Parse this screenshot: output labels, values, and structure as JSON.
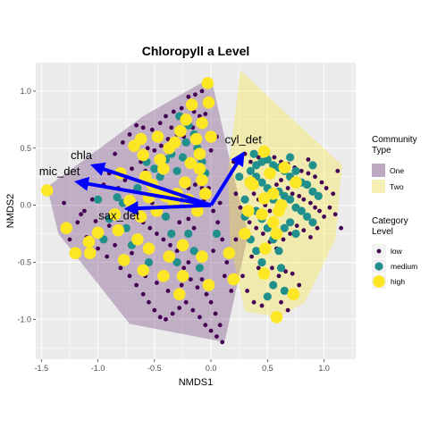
{
  "chart_data": {
    "type": "scatter",
    "title": "Chloropyll a Level",
    "xlabel": "NMDS1",
    "ylabel": "NMDS2",
    "xlim": [
      -1.55,
      1.28
    ],
    "ylim": [
      -1.35,
      1.25
    ],
    "x_ticks": [
      "-1.5",
      "-1.0",
      "-0.5",
      "0.0",
      "0.5",
      "1.0"
    ],
    "x_tick_values": [
      -1.5,
      -1.0,
      -0.5,
      0.0,
      0.5,
      1.0
    ],
    "y_ticks": [
      "-1.0",
      "-0.5",
      "0.0",
      "0.5",
      "1.0"
    ],
    "y_tick_values": [
      -1.0,
      -0.5,
      0.0,
      0.5,
      1.0
    ],
    "grid": true,
    "legend_placement": "right",
    "hulls": {
      "legend_title": "Community Type",
      "groups": [
        {
          "name": "One",
          "color": "#440154",
          "polygon": [
            [
              -1.45,
              0.16
            ],
            [
              -0.6,
              0.78
            ],
            [
              0.0,
              1.12
            ],
            [
              0.17,
              0.38
            ],
            [
              0.33,
              -0.25
            ],
            [
              0.12,
              -1.2
            ],
            [
              -0.72,
              -1.04
            ],
            [
              -1.35,
              -0.25
            ]
          ]
        },
        {
          "name": "Two",
          "color": "#fde725",
          "polygon": [
            [
              0.26,
              1.18
            ],
            [
              1.16,
              0.35
            ],
            [
              1.1,
              -0.3
            ],
            [
              0.83,
              -0.85
            ],
            [
              0.6,
              -0.98
            ],
            [
              0.3,
              -0.93
            ],
            [
              0.17,
              -0.35
            ],
            [
              0.15,
              0.3
            ]
          ]
        }
      ]
    },
    "points": {
      "legend_title": "Category Level",
      "categories": [
        {
          "name": "low",
          "color": "#440154"
        },
        {
          "name": "medium",
          "color": "#21908c"
        },
        {
          "name": "high",
          "color": "#fde725"
        }
      ],
      "high": [
        [
          -1.45,
          0.13
        ],
        [
          -1.28,
          -0.2
        ],
        [
          -1.08,
          -0.32
        ],
        [
          -1.0,
          -0.24
        ],
        [
          -1.07,
          -0.42
        ],
        [
          -1.2,
          -0.42
        ],
        [
          -0.82,
          -0.22
        ],
        [
          -0.77,
          -0.48
        ],
        [
          -0.6,
          -0.57
        ],
        [
          -0.85,
          -0.08
        ],
        [
          -0.68,
          0.52
        ],
        [
          -0.62,
          0.58
        ],
        [
          -0.58,
          0.25
        ],
        [
          -0.52,
          0.18
        ],
        [
          -0.55,
          0.07
        ],
        [
          -0.47,
          0.6
        ],
        [
          -0.47,
          0.12
        ],
        [
          -0.4,
          0.08
        ],
        [
          -0.45,
          0.4
        ],
        [
          -0.42,
          0.32
        ],
        [
          -0.37,
          0.5
        ],
        [
          -0.32,
          0.55
        ],
        [
          -0.27,
          0.65
        ],
        [
          -0.22,
          0.75
        ],
        [
          -0.17,
          0.88
        ],
        [
          -0.13,
          0.58
        ],
        [
          -0.1,
          0.32
        ],
        [
          -0.08,
          0.22
        ],
        [
          -0.05,
          0.1
        ],
        [
          -0.08,
          0.72
        ],
        [
          -0.02,
          0.9
        ],
        [
          -0.03,
          1.07
        ],
        [
          -0.18,
          0.37
        ],
        [
          -0.3,
          0.1
        ],
        [
          -0.23,
          0.2
        ],
        [
          -0.6,
          0.44
        ],
        [
          -0.55,
          -0.38
        ],
        [
          -0.62,
          -0.1
        ],
        [
          -0.48,
          -0.05
        ],
        [
          -0.37,
          -0.45
        ],
        [
          -0.42,
          -0.62
        ],
        [
          -0.25,
          -0.35
        ],
        [
          -0.25,
          -0.62
        ],
        [
          -0.28,
          -0.78
        ],
        [
          -0.08,
          -0.45
        ],
        [
          -0.02,
          -0.7
        ],
        [
          0.16,
          -0.42
        ],
        [
          0.2,
          -0.65
        ],
        [
          -0.65,
          -0.3
        ],
        [
          -0.72,
          0.04
        ],
        [
          -0.33,
          0.02
        ],
        [
          -0.2,
          0.05
        ],
        [
          -0.12,
          -0.05
        ],
        [
          -0.8,
          0.28
        ],
        [
          0.0,
          0.6
        ],
        [
          -0.1,
          0.45
        ],
        [
          0.52,
          0.28
        ],
        [
          0.47,
          0.06
        ],
        [
          0.55,
          0.1
        ],
        [
          0.6,
          -0.05
        ],
        [
          0.55,
          -0.15
        ],
        [
          0.58,
          -0.25
        ],
        [
          0.48,
          -0.38
        ],
        [
          0.62,
          0.0
        ],
        [
          0.37,
          0.18
        ],
        [
          0.45,
          -0.08
        ],
        [
          0.47,
          0.47
        ],
        [
          0.33,
          -0.05
        ],
        [
          0.3,
          -0.25
        ],
        [
          0.73,
          -0.78
        ],
        [
          0.58,
          -0.98
        ],
        [
          0.47,
          -0.6
        ],
        [
          0.75,
          0.2
        ],
        [
          0.65,
          0.33
        ],
        [
          0.35,
          0.2
        ]
      ],
      "medium": [
        [
          -0.9,
          -0.12
        ],
        [
          -0.95,
          -0.3
        ],
        [
          -1.0,
          0.05
        ],
        [
          -0.83,
          0.07
        ],
        [
          -0.78,
          0.02
        ],
        [
          -0.75,
          -0.2
        ],
        [
          -0.7,
          -0.35
        ],
        [
          -0.57,
          0.38
        ],
        [
          -0.5,
          0.32
        ],
        [
          -0.45,
          0.25
        ],
        [
          -0.4,
          0.4
        ],
        [
          -0.35,
          0.45
        ],
        [
          -0.3,
          0.3
        ],
        [
          -0.25,
          0.42
        ],
        [
          -0.22,
          0.55
        ],
        [
          -0.15,
          0.62
        ],
        [
          -0.12,
          0.5
        ],
        [
          -0.08,
          0.38
        ],
        [
          -0.05,
          0.28
        ],
        [
          -0.4,
          -0.1
        ],
        [
          -0.35,
          -0.25
        ],
        [
          -0.3,
          -0.5
        ],
        [
          -0.2,
          -0.25
        ],
        [
          -0.15,
          -0.4
        ],
        [
          -0.1,
          -0.55
        ],
        [
          0.05,
          -0.25
        ],
        [
          -0.65,
          0.15
        ],
        [
          -0.55,
          -0.5
        ],
        [
          -0.28,
          0.78
        ],
        [
          -0.2,
          0.7
        ],
        [
          0.35,
          0.3
        ],
        [
          0.4,
          0.35
        ],
        [
          0.45,
          0.38
        ],
        [
          0.5,
          0.4
        ],
        [
          0.55,
          0.35
        ],
        [
          0.6,
          0.33
        ],
        [
          0.65,
          0.3
        ],
        [
          0.7,
          0.25
        ],
        [
          0.75,
          0.3
        ],
        [
          0.8,
          0.2
        ],
        [
          0.85,
          0.18
        ],
        [
          0.9,
          0.12
        ],
        [
          0.95,
          0.08
        ],
        [
          0.4,
          0.25
        ],
        [
          0.45,
          0.2
        ],
        [
          0.5,
          0.15
        ],
        [
          0.55,
          0.05
        ],
        [
          0.6,
          0.12
        ],
        [
          0.65,
          0.08
        ],
        [
          0.7,
          0.05
        ],
        [
          0.75,
          -0.02
        ],
        [
          0.8,
          -0.05
        ],
        [
          0.85,
          -0.1
        ],
        [
          0.9,
          -0.15
        ],
        [
          0.4,
          -0.05
        ],
        [
          0.45,
          -0.12
        ],
        [
          0.5,
          -0.2
        ],
        [
          0.55,
          -0.3
        ],
        [
          0.6,
          -0.4
        ],
        [
          0.65,
          -0.2
        ],
        [
          0.7,
          -0.15
        ],
        [
          0.75,
          -0.25
        ],
        [
          0.3,
          -0.1
        ],
        [
          0.35,
          -0.3
        ],
        [
          0.4,
          -0.4
        ],
        [
          0.45,
          -0.5
        ],
        [
          0.55,
          -0.7
        ],
        [
          0.5,
          -0.8
        ],
        [
          0.65,
          -0.75
        ],
        [
          0.3,
          0.05
        ],
        [
          0.38,
          0.45
        ],
        [
          0.7,
          0.42
        ],
        [
          0.9,
          0.35
        ],
        [
          0.62,
          -0.55
        ],
        [
          0.25,
          0.25
        ]
      ],
      "low": [
        [
          -0.85,
          0.45
        ],
        [
          -0.78,
          0.55
        ],
        [
          -0.72,
          0.62
        ],
        [
          -0.66,
          0.7
        ],
        [
          -0.6,
          0.68
        ],
        [
          -0.52,
          0.66
        ],
        [
          -0.45,
          0.72
        ],
        [
          -0.4,
          0.78
        ],
        [
          -0.33,
          0.82
        ],
        [
          -0.26,
          0.85
        ],
        [
          -0.2,
          0.95
        ],
        [
          -0.14,
          0.97
        ],
        [
          -0.08,
          1.0
        ],
        [
          -0.05,
          0.8
        ],
        [
          -0.1,
          0.78
        ],
        [
          -0.16,
          0.68
        ],
        [
          -0.24,
          0.6
        ],
        [
          -0.3,
          0.62
        ],
        [
          -0.38,
          0.58
        ],
        [
          -0.44,
          0.52
        ],
        [
          -0.5,
          0.48
        ],
        [
          -0.56,
          0.5
        ],
        [
          -0.62,
          0.38
        ],
        [
          -0.7,
          0.32
        ],
        [
          -0.76,
          0.22
        ],
        [
          -0.82,
          0.15
        ],
        [
          -0.9,
          0.28
        ],
        [
          -0.95,
          0.18
        ],
        [
          -1.05,
          0.05
        ],
        [
          -1.12,
          -0.05
        ],
        [
          -1.18,
          -0.15
        ],
        [
          -1.25,
          -0.3
        ],
        [
          -1.1,
          -0.28
        ],
        [
          -1.0,
          -0.38
        ],
        [
          -0.92,
          -0.45
        ],
        [
          -0.85,
          -0.35
        ],
        [
          -0.8,
          -0.55
        ],
        [
          -0.72,
          -0.62
        ],
        [
          -0.66,
          -0.7
        ],
        [
          -0.6,
          -0.78
        ],
        [
          -0.55,
          -0.85
        ],
        [
          -0.5,
          -0.92
        ],
        [
          -0.45,
          -0.98
        ],
        [
          -0.4,
          -1.0
        ],
        [
          -0.34,
          -0.95
        ],
        [
          -0.28,
          -0.9
        ],
        [
          -0.22,
          -0.85
        ],
        [
          -0.16,
          -0.92
        ],
        [
          -0.1,
          -0.98
        ],
        [
          -0.05,
          -1.05
        ],
        [
          0.0,
          -1.1
        ],
        [
          0.05,
          -1.15
        ],
        [
          0.1,
          -1.2
        ],
        [
          0.08,
          -1.05
        ],
        [
          0.04,
          -0.95
        ],
        [
          0.0,
          -0.85
        ],
        [
          -0.04,
          -0.78
        ],
        [
          -0.08,
          -0.65
        ],
        [
          -0.12,
          -0.72
        ],
        [
          -0.18,
          -0.65
        ],
        [
          -0.24,
          -0.55
        ],
        [
          -0.3,
          -0.4
        ],
        [
          -0.36,
          -0.35
        ],
        [
          -0.42,
          -0.3
        ],
        [
          -0.48,
          -0.25
        ],
        [
          -0.54,
          -0.2
        ],
        [
          -0.6,
          -0.15
        ],
        [
          -0.66,
          -0.05
        ],
        [
          -0.52,
          0.02
        ],
        [
          -0.46,
          -0.02
        ],
        [
          -0.38,
          0.05
        ],
        [
          -0.32,
          0.12
        ],
        [
          -0.26,
          0.08
        ],
        [
          -0.2,
          0.15
        ],
        [
          -0.14,
          0.18
        ],
        [
          -0.06,
          0.05
        ],
        [
          0.02,
          -0.05
        ],
        [
          0.06,
          -0.15
        ],
        [
          0.1,
          -0.3
        ],
        [
          0.14,
          -0.5
        ],
        [
          0.12,
          -0.62
        ],
        [
          0.18,
          -0.75
        ],
        [
          0.22,
          -0.3
        ],
        [
          0.08,
          0.02
        ],
        [
          -0.02,
          0.15
        ],
        [
          -0.2,
          -0.12
        ],
        [
          -0.15,
          -0.2
        ],
        [
          -0.28,
          -0.15
        ],
        [
          -0.7,
          -0.42
        ],
        [
          -0.58,
          -0.62
        ],
        [
          -0.48,
          -0.68
        ],
        [
          -0.38,
          -0.75
        ],
        [
          -0.26,
          -0.7
        ],
        [
          -0.2,
          -0.5
        ],
        [
          0.02,
          -0.4
        ],
        [
          -0.9,
          -0.18
        ],
        [
          -1.02,
          -0.14
        ],
        [
          -1.15,
          -0.08
        ],
        [
          -1.3,
          0.02
        ],
        [
          -0.68,
          0.12
        ],
        [
          -0.58,
          0.3
        ],
        [
          -0.35,
          0.68
        ],
        [
          -0.15,
          0.82
        ],
        [
          0.05,
          0.6
        ],
        [
          0.0,
          0.48
        ],
        [
          -0.08,
          0.15
        ],
        [
          0.3,
          0.45
        ],
        [
          0.35,
          0.38
        ],
        [
          0.42,
          0.42
        ],
        [
          0.5,
          0.45
        ],
        [
          0.56,
          0.42
        ],
        [
          0.62,
          0.38
        ],
        [
          0.68,
          0.36
        ],
        [
          0.74,
          0.33
        ],
        [
          0.8,
          0.3
        ],
        [
          0.86,
          0.28
        ],
        [
          0.92,
          0.25
        ],
        [
          0.98,
          0.2
        ],
        [
          1.02,
          0.15
        ],
        [
          1.08,
          0.1
        ],
        [
          1.12,
          0.3
        ],
        [
          0.32,
          0.22
        ],
        [
          0.38,
          0.1
        ],
        [
          0.42,
          0.05
        ],
        [
          0.48,
          0.0
        ],
        [
          0.52,
          -0.05
        ],
        [
          0.58,
          0.18
        ],
        [
          0.62,
          0.22
        ],
        [
          0.68,
          0.15
        ],
        [
          0.72,
          0.1
        ],
        [
          0.78,
          0.08
        ],
        [
          0.82,
          0.05
        ],
        [
          0.88,
          0.02
        ],
        [
          0.92,
          -0.02
        ],
        [
          0.96,
          -0.05
        ],
        [
          1.0,
          -0.1
        ],
        [
          1.05,
          -0.02
        ],
        [
          1.1,
          -0.08
        ],
        [
          0.34,
          -0.15
        ],
        [
          0.4,
          -0.2
        ],
        [
          0.46,
          -0.25
        ],
        [
          0.52,
          -0.32
        ],
        [
          0.58,
          -0.38
        ],
        [
          0.64,
          -0.3
        ],
        [
          0.7,
          -0.25
        ],
        [
          0.76,
          -0.18
        ],
        [
          0.82,
          -0.22
        ],
        [
          0.88,
          -0.28
        ],
        [
          0.94,
          -0.2
        ],
        [
          0.36,
          -0.45
        ],
        [
          0.42,
          -0.55
        ],
        [
          0.48,
          -0.62
        ],
        [
          0.54,
          -0.55
        ],
        [
          0.6,
          -0.62
        ],
        [
          0.66,
          -0.58
        ],
        [
          0.72,
          -0.6
        ],
        [
          0.78,
          -0.7
        ],
        [
          0.28,
          -0.62
        ],
        [
          0.32,
          -0.75
        ],
        [
          0.38,
          -0.85
        ],
        [
          0.45,
          -0.88
        ],
        [
          0.62,
          -0.85
        ],
        [
          0.68,
          -0.92
        ],
        [
          0.22,
          0.1
        ],
        [
          0.26,
          -0.02
        ],
        [
          0.2,
          0.38
        ],
        [
          0.86,
          0.4
        ],
        [
          1.15,
          -0.2
        ]
      ]
    },
    "arrows": [
      {
        "label": "chla",
        "x": -1.02,
        "y": 0.34
      },
      {
        "label": "mic_det",
        "x": -1.16,
        "y": 0.2
      },
      {
        "label": "sax_det",
        "x": -0.72,
        "y": -0.03
      },
      {
        "label": "cyl_det",
        "x": 0.27,
        "y": 0.43
      }
    ]
  }
}
